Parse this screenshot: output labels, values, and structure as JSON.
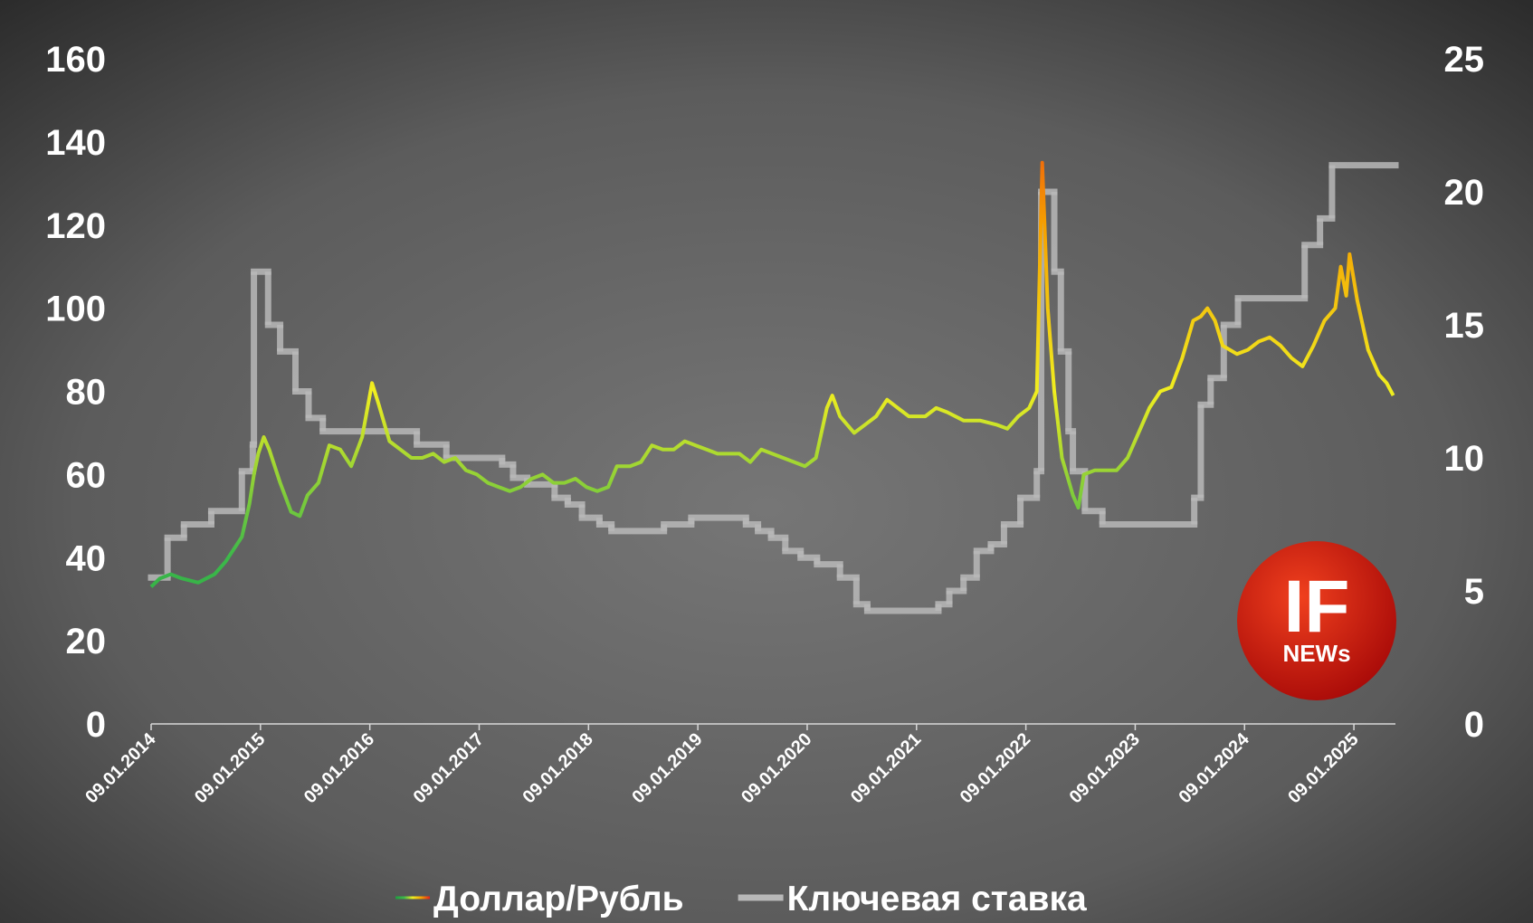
{
  "chart_data": {
    "type": "line",
    "series": [
      {
        "name": "Доллар/Рубль",
        "color_scale": [
          "#1f9e3f",
          "#3cb84a",
          "#f0ee20",
          "#f5a000",
          "#e8201a"
        ],
        "x": [
          2014.02,
          2014.1,
          2014.2,
          2014.3,
          2014.45,
          2014.6,
          2014.7,
          2014.85,
          2014.92,
          2014.96,
          2015.0,
          2015.05,
          2015.1,
          2015.2,
          2015.3,
          2015.38,
          2015.45,
          2015.55,
          2015.65,
          2015.75,
          2015.85,
          2015.95,
          2016.04,
          2016.1,
          2016.2,
          2016.3,
          2016.4,
          2016.5,
          2016.6,
          2016.7,
          2016.8,
          2016.9,
          2017.0,
          2017.1,
          2017.2,
          2017.3,
          2017.4,
          2017.5,
          2017.6,
          2017.7,
          2017.8,
          2017.9,
          2018.0,
          2018.1,
          2018.2,
          2018.28,
          2018.4,
          2018.5,
          2018.6,
          2018.7,
          2018.8,
          2018.9,
          2019.0,
          2019.1,
          2019.2,
          2019.3,
          2019.4,
          2019.5,
          2019.6,
          2019.7,
          2019.8,
          2019.9,
          2020.0,
          2020.1,
          2020.2,
          2020.25,
          2020.32,
          2020.45,
          2020.55,
          2020.65,
          2020.75,
          2020.85,
          2020.95,
          2021.1,
          2021.2,
          2021.3,
          2021.45,
          2021.6,
          2021.75,
          2021.85,
          2021.95,
          2022.05,
          2022.12,
          2022.17,
          2022.22,
          2022.28,
          2022.35,
          2022.45,
          2022.5,
          2022.55,
          2022.65,
          2022.75,
          2022.85,
          2022.95,
          2023.05,
          2023.15,
          2023.25,
          2023.35,
          2023.45,
          2023.55,
          2023.62,
          2023.68,
          2023.75,
          2023.82,
          2023.95,
          2024.05,
          2024.15,
          2024.25,
          2024.35,
          2024.45,
          2024.55,
          2024.65,
          2024.75,
          2024.85,
          2024.9,
          2024.95,
          2024.98,
          2025.05,
          2025.15,
          2025.25,
          2025.32,
          2025.38
        ],
        "values": [
          33,
          35,
          36,
          35,
          34,
          36,
          39,
          45,
          53,
          60,
          65,
          69,
          66,
          58,
          51,
          50,
          55,
          58,
          67,
          66,
          62,
          69,
          82,
          77,
          68,
          66,
          64,
          64,
          65,
          63,
          64,
          61,
          60,
          58,
          57,
          56,
          57,
          59,
          60,
          58,
          58,
          59,
          57,
          56,
          57,
          62,
          62,
          63,
          67,
          66,
          66,
          68,
          67,
          66,
          65,
          65,
          65,
          63,
          66,
          65,
          64,
          63,
          62,
          64,
          76,
          79,
          74,
          70,
          72,
          74,
          78,
          76,
          74,
          74,
          76,
          75,
          73,
          73,
          72,
          71,
          74,
          76,
          80,
          135,
          100,
          80,
          64,
          55,
          52,
          60,
          61,
          61,
          61,
          64,
          70,
          76,
          80,
          81,
          88,
          97,
          98,
          100,
          97,
          91,
          89,
          90,
          92,
          93,
          91,
          88,
          86,
          91,
          97,
          100,
          110,
          103,
          113,
          102,
          90,
          84,
          82,
          79
        ]
      },
      {
        "name": "Ключевая ставка",
        "color": "#b8b8b8",
        "axis": "y2",
        "step": true,
        "x": [
          2014.02,
          2014.17,
          2014.32,
          2014.57,
          2014.85,
          2014.95,
          2014.96,
          2015.09,
          2015.2,
          2015.34,
          2015.46,
          2015.59,
          2016.45,
          2016.72,
          2017.23,
          2017.33,
          2017.46,
          2017.71,
          2017.83,
          2017.96,
          2018.12,
          2018.23,
          2018.71,
          2018.96,
          2019.46,
          2019.57,
          2019.69,
          2019.82,
          2019.96,
          2020.11,
          2020.32,
          2020.47,
          2020.57,
          2021.22,
          2021.32,
          2021.45,
          2021.57,
          2021.7,
          2021.82,
          2021.97,
          2022.12,
          2022.16,
          2022.28,
          2022.34,
          2022.41,
          2022.45,
          2022.56,
          2022.72,
          2023.56,
          2023.62,
          2023.71,
          2023.83,
          2023.96,
          2024.57,
          2024.71,
          2024.82
        ],
        "values": [
          5.5,
          7,
          7.5,
          8,
          9.5,
          10.5,
          17,
          15,
          14,
          12.5,
          11.5,
          11,
          10.5,
          10,
          9.75,
          9.25,
          9,
          8.5,
          8.25,
          7.75,
          7.5,
          7.25,
          7.5,
          7.75,
          7.5,
          7.25,
          7,
          6.5,
          6.25,
          6,
          5.5,
          4.5,
          4.25,
          4.5,
          5,
          5.5,
          6.5,
          6.75,
          7.5,
          8.5,
          9.5,
          20,
          17,
          14,
          11,
          9.5,
          8,
          7.5,
          8.5,
          12,
          13,
          15,
          16,
          18,
          19,
          21
        ]
      }
    ],
    "xlim": [
      2014.02,
      2025.4
    ],
    "xticks": [
      {
        "value": 2014.02,
        "label": "09.01.2014"
      },
      {
        "value": 2015.02,
        "label": "09.01.2015"
      },
      {
        "value": 2016.02,
        "label": "09.01.2016"
      },
      {
        "value": 2017.02,
        "label": "09.01.2017"
      },
      {
        "value": 2018.02,
        "label": "09.01.2018"
      },
      {
        "value": 2019.02,
        "label": "09.01.2019"
      },
      {
        "value": 2020.02,
        "label": "09.01.2020"
      },
      {
        "value": 2021.02,
        "label": "09.01.2021"
      },
      {
        "value": 2022.02,
        "label": "09.01.2022"
      },
      {
        "value": 2023.02,
        "label": "09.01.2023"
      },
      {
        "value": 2024.02,
        "label": "09.01.2024"
      },
      {
        "value": 2025.02,
        "label": "09.01.2025"
      }
    ],
    "ylim": [
      0,
      160
    ],
    "yticks": [
      0,
      20,
      40,
      60,
      80,
      100,
      120,
      140,
      160
    ],
    "y2lim": [
      0,
      25
    ],
    "y2ticks": [
      0,
      5,
      10,
      15,
      20,
      25
    ],
    "grid": false,
    "legend": "bottom"
  },
  "logo": {
    "title": "IF",
    "subtitle": "NEWs"
  }
}
